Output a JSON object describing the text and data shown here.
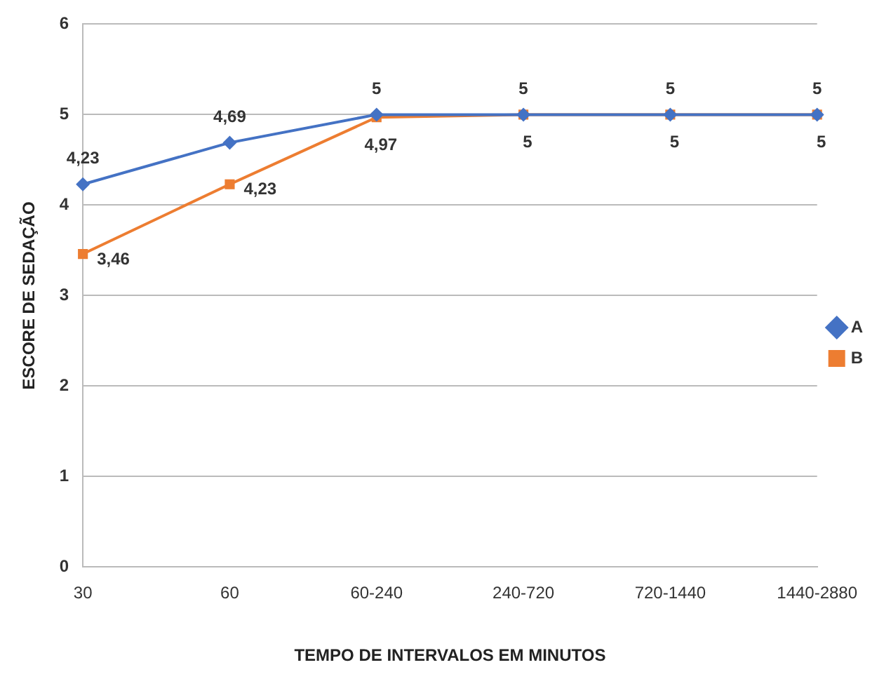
{
  "chart_data": {
    "type": "line",
    "xlabel": "TEMPO DE INTERVALOS EM MINUTOS",
    "ylabel": "ESCORE DE SEDAÇÃO",
    "categories": [
      "30",
      "60",
      "60-240",
      "240-720",
      "720-1440",
      "1440-2880"
    ],
    "series": [
      {
        "name": "A",
        "color": "#4472c4",
        "marker": "diamond",
        "values": [
          4.23,
          4.69,
          5,
          5,
          5,
          5
        ],
        "value_labels": [
          "4,23",
          "4,69",
          "5",
          "5",
          "5",
          "5"
        ]
      },
      {
        "name": "B",
        "color": "#ed7d31",
        "marker": "square",
        "values": [
          3.46,
          4.23,
          4.97,
          5,
          5,
          5
        ],
        "value_labels": [
          "3,46",
          "4,23",
          "4,97",
          "5",
          "5",
          "5"
        ]
      }
    ],
    "ylim": [
      0,
      6
    ],
    "yticks": [
      0,
      1,
      2,
      3,
      4,
      5,
      6
    ],
    "grid": "y",
    "legend": "right"
  }
}
